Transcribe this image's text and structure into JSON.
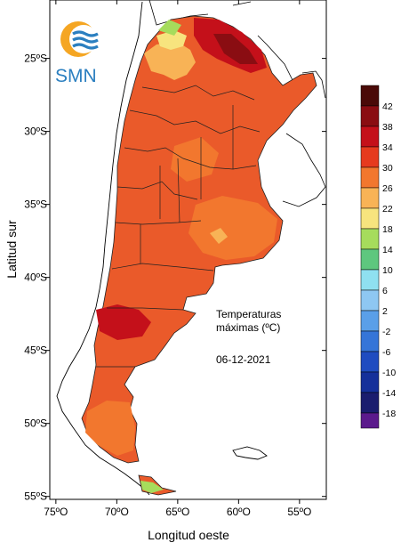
{
  "map": {
    "x_axis": {
      "title": "Longitud oeste",
      "ticks": [
        {
          "lon": -75,
          "label": "75ºO"
        },
        {
          "lon": -70,
          "label": "70ºO"
        },
        {
          "lon": -65,
          "label": "65ºO"
        },
        {
          "lon": -60,
          "label": "60ºO"
        },
        {
          "lon": -55,
          "label": "55ºO"
        }
      ]
    },
    "y_axis": {
      "title": "Latitud sur",
      "ticks": [
        {
          "lat": -25,
          "label": "25ºS"
        },
        {
          "lat": -30,
          "label": "30ºS"
        },
        {
          "lat": -35,
          "label": "35ºS"
        },
        {
          "lat": -40,
          "label": "40ºS"
        },
        {
          "lat": -45,
          "label": "45ºS"
        },
        {
          "lat": -50,
          "label": "50ºS"
        },
        {
          "lat": -55,
          "label": "55ºS"
        }
      ]
    },
    "extent": {
      "lon_min": -75.5,
      "lon_max": -52.8,
      "lat_min": -55.2,
      "lat_max": -21.0
    },
    "annotation": {
      "title_line1": "Temperaturas",
      "title_line2": "máximas (ºC)",
      "date": "06-12-2021"
    },
    "logo": {
      "text": "SMN"
    }
  },
  "color_scale": {
    "bins": [
      {
        "label": "42",
        "color": "#4a0a08"
      },
      {
        "label": "38",
        "color": "#8a0d12"
      },
      {
        "label": "34",
        "color": "#c4101a"
      },
      {
        "label": "30",
        "color": "#e63a1e"
      },
      {
        "label": "26",
        "color": "#f2772e"
      },
      {
        "label": "22",
        "color": "#f8b356"
      },
      {
        "label": "18",
        "color": "#f7e47e"
      },
      {
        "label": "14",
        "color": "#a6dc5c"
      },
      {
        "label": "10",
        "color": "#5ec77e"
      },
      {
        "label": "6",
        "color": "#8fe0f0"
      },
      {
        "label": "2",
        "color": "#8ec7f2"
      },
      {
        "label": "-2",
        "color": "#5a9fe8"
      },
      {
        "label": "-6",
        "color": "#3575d8"
      },
      {
        "label": "-10",
        "color": "#1f4cc0"
      },
      {
        "label": "-14",
        "color": "#15309a"
      },
      {
        "label": "-18",
        "color": "#1a1d6e"
      }
    ],
    "bottom_color": "#5b1a8c"
  }
}
